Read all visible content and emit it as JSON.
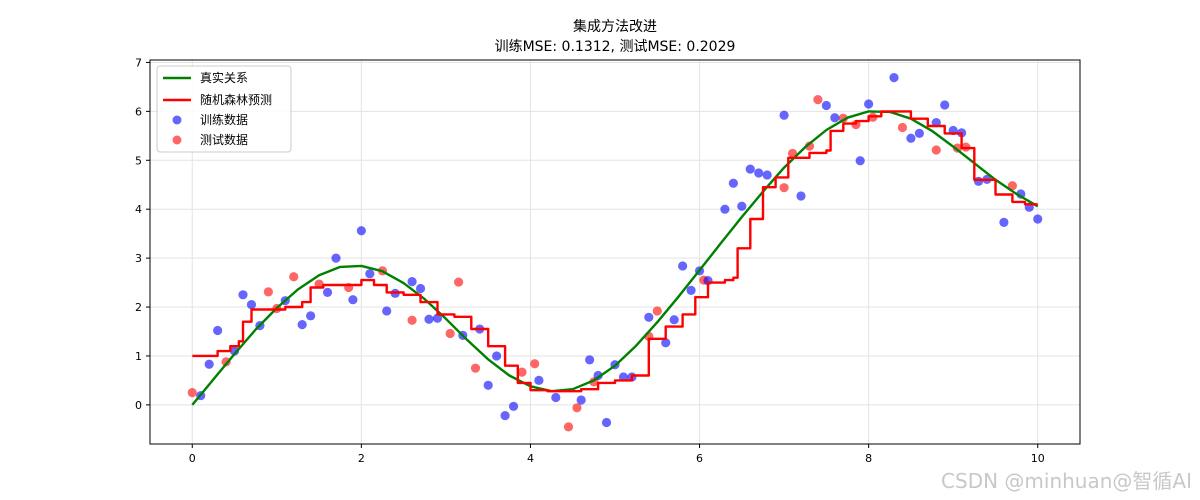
{
  "chart_data": {
    "type": "scatter",
    "title": "集成方法改进",
    "subtitle": "训练MSE: 0.1312, 测试MSE: 0.2029",
    "xlabel": "",
    "ylabel": "",
    "xlim": [
      -0.5,
      10.5
    ],
    "ylim": [
      -0.8,
      7.05
    ],
    "xticks": [
      0,
      2,
      4,
      6,
      8,
      10
    ],
    "yticks": [
      0,
      1,
      2,
      3,
      4,
      5,
      6,
      7
    ],
    "grid": true,
    "legend_position": "top-left",
    "series": [
      {
        "name": "真实关系",
        "kind": "line",
        "color": "#008000",
        "function_note": "",
        "x": [
          0,
          0.25,
          0.5,
          0.75,
          1,
          1.25,
          1.5,
          1.75,
          2,
          2.25,
          2.5,
          2.75,
          3,
          3.25,
          3.5,
          3.75,
          4,
          4.25,
          4.5,
          4.75,
          5,
          5.25,
          5.5,
          5.75,
          6,
          6.25,
          6.5,
          6.75,
          7,
          7.25,
          7.5,
          7.75,
          8,
          8.25,
          8.5,
          8.75,
          9,
          9.25,
          9.5,
          9.75,
          10
        ],
        "y": [
          0.0,
          0.52,
          1.04,
          1.54,
          1.98,
          2.36,
          2.65,
          2.82,
          2.84,
          2.73,
          2.49,
          2.16,
          1.76,
          1.33,
          0.93,
          0.6,
          0.38,
          0.28,
          0.32,
          0.5,
          0.8,
          1.21,
          1.69,
          2.21,
          2.75,
          3.3,
          3.84,
          4.36,
          4.85,
          5.27,
          5.62,
          5.87,
          6.0,
          5.99,
          5.85,
          5.6,
          5.28,
          4.94,
          4.6,
          4.31,
          4.06
        ]
      },
      {
        "name": "随机森林预测",
        "kind": "step-line",
        "color": "#ff0000",
        "x": [
          0,
          0.25,
          0.3,
          0.45,
          0.55,
          0.6,
          0.7,
          0.9,
          1.1,
          1.3,
          1.4,
          1.55,
          1.7,
          1.85,
          2.0,
          2.15,
          2.3,
          2.5,
          2.7,
          2.9,
          3.1,
          3.3,
          3.5,
          3.7,
          3.85,
          4.0,
          4.2,
          4.4,
          4.6,
          4.8,
          5.0,
          5.2,
          5.4,
          5.6,
          5.8,
          5.95,
          6.1,
          6.3,
          6.4,
          6.45,
          6.6,
          6.75,
          6.9,
          7.05,
          7.3,
          7.5,
          7.55,
          7.7,
          7.85,
          8.0,
          8.15,
          8.35,
          8.5,
          8.7,
          8.9,
          9.1,
          9.25,
          9.5,
          9.7,
          9.85,
          10.0
        ],
        "y": [
          1.0,
          1.0,
          1.1,
          1.2,
          1.3,
          1.7,
          1.95,
          1.95,
          2.0,
          2.1,
          2.4,
          2.45,
          2.45,
          2.45,
          2.55,
          2.45,
          2.3,
          2.25,
          2.1,
          1.85,
          1.8,
          1.55,
          1.2,
          0.8,
          0.45,
          0.3,
          0.28,
          0.28,
          0.32,
          0.45,
          0.5,
          0.6,
          1.35,
          1.6,
          1.85,
          2.2,
          2.5,
          2.55,
          2.6,
          3.2,
          3.8,
          4.45,
          4.65,
          5.05,
          5.15,
          5.2,
          5.6,
          5.75,
          5.8,
          5.9,
          6.0,
          6.0,
          5.85,
          5.7,
          5.55,
          5.25,
          4.6,
          4.3,
          4.15,
          4.1,
          4.1
        ]
      },
      {
        "name": "训练数据",
        "kind": "points",
        "color": "#0000ff",
        "x": [
          0.1,
          0.2,
          0.3,
          0.5,
          0.6,
          0.7,
          0.8,
          1.1,
          1.3,
          1.4,
          1.6,
          1.7,
          1.9,
          2.0,
          2.1,
          2.3,
          2.4,
          2.6,
          2.7,
          2.8,
          2.9,
          3.2,
          3.4,
          3.5,
          3.6,
          3.7,
          3.8,
          4.1,
          4.3,
          4.6,
          4.7,
          4.8,
          4.9,
          5.0,
          5.1,
          5.2,
          5.4,
          5.6,
          5.7,
          5.8,
          5.9,
          6.0,
          6.1,
          6.3,
          6.4,
          6.5,
          6.6,
          6.7,
          6.8,
          7.0,
          7.2,
          7.5,
          7.6,
          7.9,
          8.0,
          8.3,
          8.5,
          8.6,
          8.8,
          8.9,
          9.0,
          9.1,
          9.3,
          9.4,
          9.6,
          9.8,
          9.9,
          10.0
        ],
        "y": [
          0.19,
          0.83,
          1.52,
          1.1,
          2.25,
          2.05,
          1.62,
          2.13,
          1.64,
          1.82,
          2.3,
          3.0,
          2.15,
          3.56,
          2.68,
          1.92,
          2.28,
          2.52,
          2.38,
          1.75,
          1.77,
          1.42,
          1.55,
          0.4,
          1.0,
          -0.22,
          -0.03,
          0.5,
          0.15,
          0.1,
          0.92,
          0.6,
          -0.36,
          0.82,
          0.57,
          0.57,
          1.79,
          1.27,
          1.74,
          2.84,
          2.34,
          2.74,
          2.54,
          4.0,
          4.53,
          4.06,
          4.82,
          4.74,
          4.7,
          5.92,
          4.27,
          6.12,
          5.87,
          4.99,
          6.15,
          6.69,
          5.45,
          5.55,
          5.77,
          6.13,
          5.61,
          5.56,
          4.57,
          4.61,
          3.73,
          4.31,
          4.04,
          3.8
        ]
      },
      {
        "name": "测试数据",
        "kind": "points",
        "color": "#ff0000",
        "x": [
          0.0,
          0.4,
          0.9,
          1.0,
          1.2,
          1.5,
          1.85,
          2.25,
          2.6,
          3.05,
          3.15,
          3.35,
          3.9,
          4.05,
          4.45,
          4.55,
          4.75,
          5.4,
          5.5,
          6.05,
          7.0,
          7.1,
          7.3,
          7.4,
          7.7,
          7.85,
          8.05,
          8.4,
          8.8,
          9.05,
          9.15,
          9.7
        ],
        "y": [
          0.25,
          0.88,
          2.31,
          1.97,
          2.62,
          2.47,
          2.4,
          2.74,
          1.73,
          1.46,
          2.51,
          0.75,
          0.67,
          0.84,
          -0.45,
          -0.06,
          0.47,
          1.4,
          1.92,
          2.55,
          4.44,
          5.14,
          5.29,
          6.24,
          5.86,
          5.73,
          5.88,
          5.67,
          5.21,
          5.25,
          5.27,
          4.48
        ]
      }
    ]
  },
  "watermark": "CSDN @minhuan@智循AI"
}
